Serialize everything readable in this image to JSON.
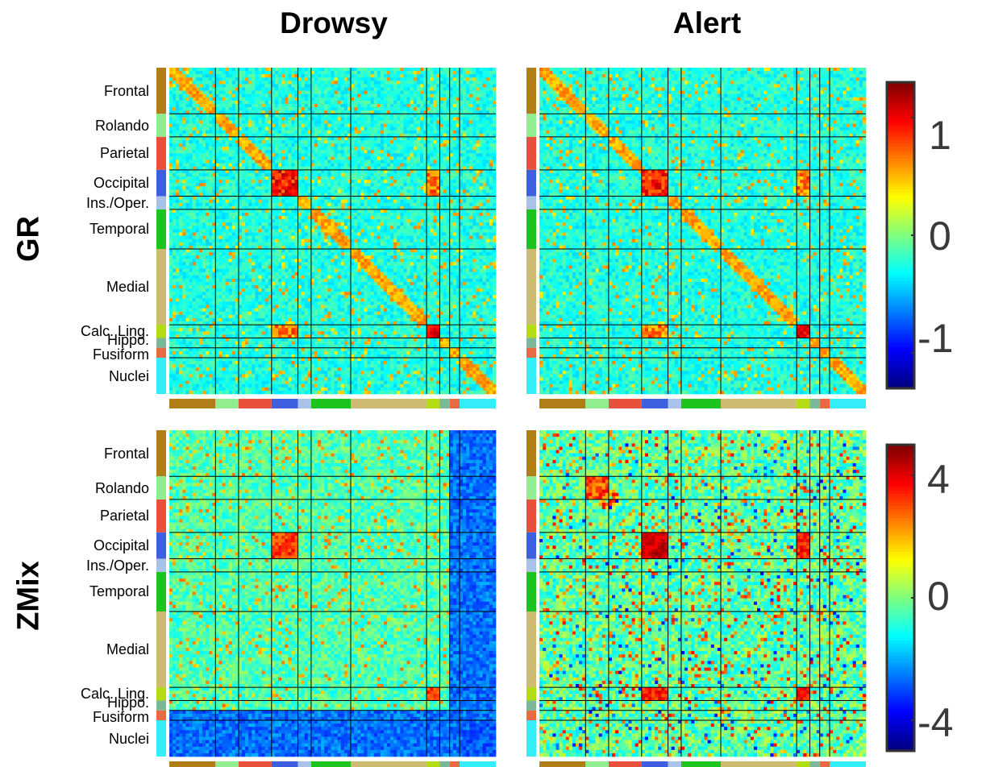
{
  "columns": [
    "Drowsy",
    "Alert"
  ],
  "rows": [
    "GR",
    "ZMix"
  ],
  "regions": [
    "Frontal",
    "Rolando",
    "Parietal",
    "Occipital",
    "Ins./Oper.",
    "Temporal",
    "Medial",
    "Calc. Ling.",
    "Hippo.",
    "Fusiform",
    "Nuclei"
  ],
  "colorbars": [
    {
      "row": "GR",
      "ticks": [
        "1",
        "0",
        "-1"
      ],
      "tick_values": [
        1,
        0,
        -1
      ],
      "range": [
        -1.3,
        1.3
      ]
    },
    {
      "row": "ZMix",
      "ticks": [
        "4",
        "0",
        "-4"
      ],
      "tick_values": [
        4,
        0,
        -4
      ],
      "range": [
        -5,
        5
      ]
    }
  ],
  "colors": {
    "region_colors": [
      "#b07d16",
      "#90ee90",
      "#e9503c",
      "#3e5fe0",
      "#a9c3e8",
      "#1dc41d",
      "#cdbb72",
      "#b4dc12",
      "#7ab899",
      "#e76a43",
      "#33eefa"
    ],
    "colormap": "jet",
    "grid_lines": "#000000"
  },
  "chart_data": [
    {
      "type": "heatmap",
      "title": "Drowsy",
      "row_label": "GR",
      "colormap": "jet",
      "clim": [
        -1.3,
        1.3
      ],
      "categories": [
        "Frontal",
        "Rolando",
        "Parietal",
        "Occipital",
        "Ins./Oper.",
        "Temporal",
        "Medial",
        "Calc. Ling.",
        "Hippo.",
        "Fusiform",
        "Nuclei"
      ],
      "values": "pairwise region connectivity, mostly near 0 with positive within-Occipital and Calc./Occipital blocks"
    },
    {
      "type": "heatmap",
      "title": "Alert",
      "row_label": "GR",
      "colormap": "jet",
      "clim": [
        -1.3,
        1.3
      ],
      "categories": [
        "Frontal",
        "Rolando",
        "Parietal",
        "Occipital",
        "Ins./Oper.",
        "Temporal",
        "Medial",
        "Calc. Ling.",
        "Hippo.",
        "Fusiform",
        "Nuclei"
      ],
      "values": "pairwise region connectivity, mostly near 0 with positive within-Occipital and Calc./Occipital blocks"
    },
    {
      "type": "heatmap",
      "title": "Drowsy",
      "row_label": "ZMix",
      "colormap": "jet",
      "clim": [
        -5,
        5
      ],
      "categories": [
        "Frontal",
        "Rolando",
        "Parietal",
        "Occipital",
        "Ins./Oper.",
        "Temporal",
        "Medial",
        "Calc. Ling.",
        "Hippo.",
        "Fusiform",
        "Nuclei"
      ],
      "values": "near 0 with negative Nuclei rows/columns"
    },
    {
      "type": "heatmap",
      "title": "Alert",
      "row_label": "ZMix",
      "colormap": "jet",
      "clim": [
        -5,
        5
      ],
      "categories": [
        "Frontal",
        "Rolando",
        "Parietal",
        "Occipital",
        "Ins./Oper.",
        "Temporal",
        "Medial",
        "Calc. Ling.",
        "Hippo.",
        "Fusiform",
        "Nuclei"
      ],
      "values": "mixed positive and negative values, strong positive within-Occipital and Calc. blocks"
    }
  ]
}
